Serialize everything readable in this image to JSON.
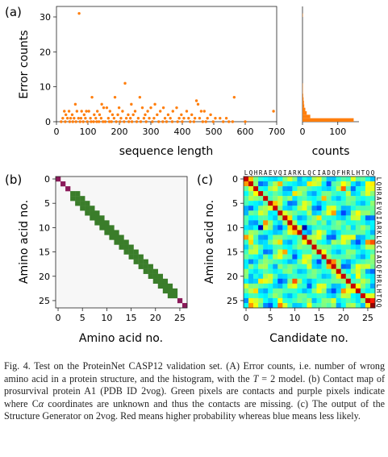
{
  "panel_labels": [
    "(a)",
    "(b)",
    "(c)"
  ],
  "caption": {
    "runs": [
      {
        "t": "Fig. 4.   Test on the ProteinNet CASP12 validation set. (A) Error counts, i.e. number of wrong amino acid in a protein structure, and the histogram, with the "
      },
      {
        "t": "T",
        "it": true
      },
      {
        "t": " = 2 model. (b) Contact map of prosurvival protein A1 (PDB ID 2vog). Green pixels are contacts and purple pixels indicate where C"
      },
      {
        "t": "α",
        "it": true
      },
      {
        "t": " coordinates are unknown and thus the contacts are missing. (c) The output of the Structure Generator on 2vog. Red means higher probability whereas blue means less likely."
      }
    ]
  },
  "chart_data": [
    {
      "type": "scatter",
      "panel": "(a)",
      "xlabel": "sequence length",
      "ylabel": "Error counts",
      "xlim": [
        0,
        700
      ],
      "ylim": [
        0,
        33
      ],
      "xticks": [
        "0",
        "100",
        "200",
        "300",
        "400",
        "500",
        "600",
        "700"
      ],
      "yticks": [
        "0",
        "10",
        "20",
        "30"
      ],
      "color": "#ff7f0e",
      "points": [
        [
          72,
          31
        ],
        [
          218,
          11
        ],
        [
          113,
          7
        ],
        [
          186,
          7
        ],
        [
          265,
          7
        ],
        [
          445,
          6
        ],
        [
          565,
          7
        ],
        [
          144,
          5
        ],
        [
          238,
          5
        ],
        [
          60,
          5
        ],
        [
          313,
          5
        ],
        [
          450,
          5
        ],
        [
          150,
          4
        ],
        [
          160,
          4
        ],
        [
          199,
          4
        ],
        [
          273,
          4
        ],
        [
          300,
          4
        ],
        [
          340,
          4
        ],
        [
          382,
          4
        ],
        [
          460,
          3
        ],
        [
          25,
          3
        ],
        [
          40,
          3
        ],
        [
          65,
          3
        ],
        [
          80,
          3
        ],
        [
          95,
          3
        ],
        [
          103,
          3
        ],
        [
          130,
          3
        ],
        [
          170,
          3
        ],
        [
          210,
          3
        ],
        [
          250,
          3
        ],
        [
          290,
          3
        ],
        [
          330,
          3
        ],
        [
          370,
          3
        ],
        [
          414,
          3
        ],
        [
          470,
          3
        ],
        [
          690,
          3
        ],
        [
          30,
          2
        ],
        [
          50,
          2
        ],
        [
          88,
          2
        ],
        [
          120,
          2
        ],
        [
          137,
          2
        ],
        [
          178,
          2
        ],
        [
          195,
          2
        ],
        [
          228,
          2
        ],
        [
          244,
          2
        ],
        [
          282,
          2
        ],
        [
          320,
          2
        ],
        [
          355,
          2
        ],
        [
          397,
          2
        ],
        [
          430,
          2
        ],
        [
          490,
          2
        ],
        [
          20,
          1
        ],
        [
          35,
          1
        ],
        [
          45,
          1
        ],
        [
          56,
          1
        ],
        [
          70,
          1
        ],
        [
          78,
          1
        ],
        [
          92,
          1
        ],
        [
          108,
          1
        ],
        [
          125,
          1
        ],
        [
          142,
          1
        ],
        [
          165,
          1
        ],
        [
          183,
          1
        ],
        [
          205,
          1
        ],
        [
          222,
          1
        ],
        [
          235,
          1
        ],
        [
          260,
          1
        ],
        [
          278,
          1
        ],
        [
          295,
          1
        ],
        [
          310,
          1
        ],
        [
          345,
          1
        ],
        [
          362,
          1
        ],
        [
          390,
          1
        ],
        [
          405,
          1
        ],
        [
          420,
          1
        ],
        [
          440,
          1
        ],
        [
          455,
          1
        ],
        [
          480,
          1
        ],
        [
          505,
          1
        ],
        [
          520,
          1
        ],
        [
          540,
          1
        ],
        [
          15,
          0
        ],
        [
          28,
          0
        ],
        [
          42,
          0
        ],
        [
          52,
          0
        ],
        [
          62,
          0
        ],
        [
          75,
          0
        ],
        [
          85,
          0
        ],
        [
          98,
          0
        ],
        [
          110,
          0
        ],
        [
          118,
          0
        ],
        [
          128,
          0
        ],
        [
          135,
          0
        ],
        [
          148,
          0
        ],
        [
          155,
          0
        ],
        [
          168,
          0
        ],
        [
          175,
          0
        ],
        [
          190,
          0
        ],
        [
          202,
          0
        ],
        [
          215,
          0
        ],
        [
          230,
          0
        ],
        [
          240,
          0
        ],
        [
          255,
          0
        ],
        [
          268,
          0
        ],
        [
          285,
          0
        ],
        [
          305,
          0
        ],
        [
          325,
          0
        ],
        [
          338,
          0
        ],
        [
          350,
          0
        ],
        [
          368,
          0
        ],
        [
          385,
          0
        ],
        [
          400,
          0
        ],
        [
          425,
          0
        ],
        [
          437,
          0
        ],
        [
          465,
          0
        ],
        [
          475,
          0
        ],
        [
          498,
          0
        ],
        [
          530,
          0
        ],
        [
          548,
          0
        ],
        [
          560,
          0
        ],
        [
          600,
          0
        ]
      ]
    },
    {
      "type": "bar",
      "panel": "(a)",
      "orientation": "horizontal",
      "xlabel": "counts",
      "xlim": [
        0,
        160
      ],
      "xticks": [
        "0",
        "100"
      ],
      "ylim": [
        0,
        33
      ],
      "color": "#ff7f0e",
      "categories": [
        "0-1",
        "1-2",
        "2-3",
        "3-4",
        "4-5",
        "5-6",
        "6-7",
        "7-8",
        "8-9",
        "9-10",
        "10-11",
        "30-31"
      ],
      "values": [
        145,
        22,
        12,
        8,
        5,
        4,
        3,
        2,
        1,
        1,
        1,
        1
      ]
    },
    {
      "type": "heatmap",
      "panel": "(b)",
      "xlabel": "Amino acid no.",
      "ylabel": "Amino acid no.",
      "n": 27,
      "xticks": [
        "0",
        "5",
        "10",
        "15",
        "20",
        "25"
      ],
      "yticks": [
        "0",
        "5",
        "10",
        "15",
        "20",
        "25"
      ],
      "colors": {
        "contact": "#3a7d2a",
        "missing": "#8b1a5a",
        "background": "#f7f7f7"
      },
      "missing_indices": [
        0,
        1,
        2,
        25,
        26
      ],
      "contact_band": 1
    },
    {
      "type": "heatmap",
      "panel": "(c)",
      "xlabel": "Candidate no.",
      "ylabel": "Amino acid no.",
      "n": 27,
      "sequence": "LQHRAEVQIARKLQCIADQFHRLHTQQ",
      "xticks": [
        "0",
        "5",
        "10",
        "15",
        "20",
        "25"
      ],
      "yticks": [
        "0",
        "5",
        "10",
        "15",
        "20",
        "25"
      ],
      "colormap": "jet"
    }
  ]
}
